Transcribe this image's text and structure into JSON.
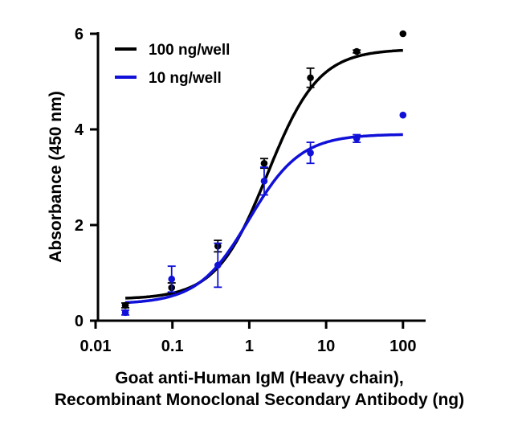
{
  "chart_data": {
    "type": "scatter",
    "title": "",
    "xlabel_line1": "Goat anti-Human IgM (Heavy chain),",
    "xlabel_line2": "Recombinant Monoclonal Secondary Antibody (ng)",
    "ylabel": "Absorbance (450 nm)",
    "xscale": "log",
    "xlim": [
      0.01,
      100
    ],
    "ylim": [
      0,
      6
    ],
    "xticks": [
      "0.01",
      "0.1",
      "1",
      "10",
      "100"
    ],
    "xtick_values": [
      0.01,
      0.1,
      1,
      10,
      100
    ],
    "yticks": [
      "0",
      "2",
      "4",
      "6"
    ],
    "ytick_values": [
      0,
      2,
      4,
      6
    ],
    "grid": false,
    "legend_position": "top-left",
    "x": [
      0.0244,
      0.0977,
      0.39,
      1.5625,
      6.25,
      25,
      100
    ],
    "series": [
      {
        "name": "100 ng/well",
        "color": "#000000",
        "values": [
          0.32,
          0.69,
          1.56,
          3.29,
          5.08,
          5.63,
          6.0
        ],
        "errors": [
          0.05,
          0.1,
          0.12,
          0.1,
          0.2,
          0.03,
          0.0
        ],
        "fit": {
          "model": "4PL",
          "bottom": 0.45,
          "top": 5.68,
          "ec50": 1.72,
          "hill": 1.3
        }
      },
      {
        "name": "10 ng/well",
        "color": "#1010d8",
        "values": [
          0.17,
          0.87,
          1.16,
          2.92,
          3.51,
          3.81,
          4.3
        ],
        "errors": [
          0.05,
          0.27,
          0.46,
          0.29,
          0.22,
          0.08,
          0.0
        ],
        "fit": {
          "model": "4PL",
          "bottom": 0.35,
          "top": 3.9,
          "ec50": 1.0,
          "hill": 1.3
        }
      }
    ]
  }
}
